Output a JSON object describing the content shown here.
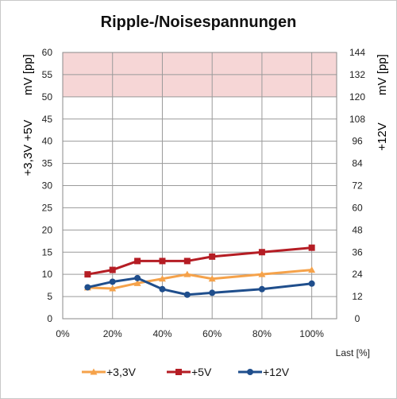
{
  "chart_data": {
    "type": "line",
    "title": "Ripple-/Noisespannungen",
    "xlabel": "Last [%]",
    "ylabel_left": [
      "+3,3V +5V",
      "mV [pp]"
    ],
    "ylabel_right": [
      "+12V",
      "mV [pp]"
    ],
    "x_ticks": [
      "0%",
      "20%",
      "40%",
      "60%",
      "80%",
      "100%"
    ],
    "xlim": [
      0,
      110
    ],
    "ylim_left": [
      0,
      60
    ],
    "ylim_right": [
      0,
      144
    ],
    "y_ticks_left": [
      "0",
      "5",
      "10",
      "15",
      "20",
      "25",
      "30",
      "35",
      "40",
      "45",
      "50",
      "55",
      "60"
    ],
    "y_ticks_right": [
      "0",
      "12",
      "24",
      "36",
      "48",
      "60",
      "72",
      "84",
      "96",
      "108",
      "120",
      "132",
      "144"
    ],
    "limit_band_left": [
      50,
      60
    ],
    "limit_band_color": "#f6d6d6",
    "grid": true,
    "legend_position": "bottom",
    "series": [
      {
        "name": "+3,3V",
        "axis": "left",
        "color": "#f5a24a",
        "marker": "triangle",
        "x": [
          10,
          20,
          30,
          40,
          50,
          60,
          80,
          100
        ],
        "y": [
          7,
          6.8,
          8,
          9,
          10,
          9,
          10,
          11
        ]
      },
      {
        "name": "+5V",
        "axis": "left",
        "color": "#b51d24",
        "marker": "square",
        "x": [
          10,
          20,
          30,
          40,
          50,
          60,
          80,
          100
        ],
        "y": [
          10,
          11,
          13,
          13,
          13,
          14,
          15,
          16
        ]
      },
      {
        "name": "+12V",
        "axis": "right",
        "color": "#1f4e8c",
        "marker": "circle",
        "x": [
          10,
          20,
          30,
          40,
          50,
          60,
          80,
          100
        ],
        "y": [
          17,
          20,
          22,
          16,
          13,
          14,
          16,
          19
        ]
      }
    ]
  }
}
